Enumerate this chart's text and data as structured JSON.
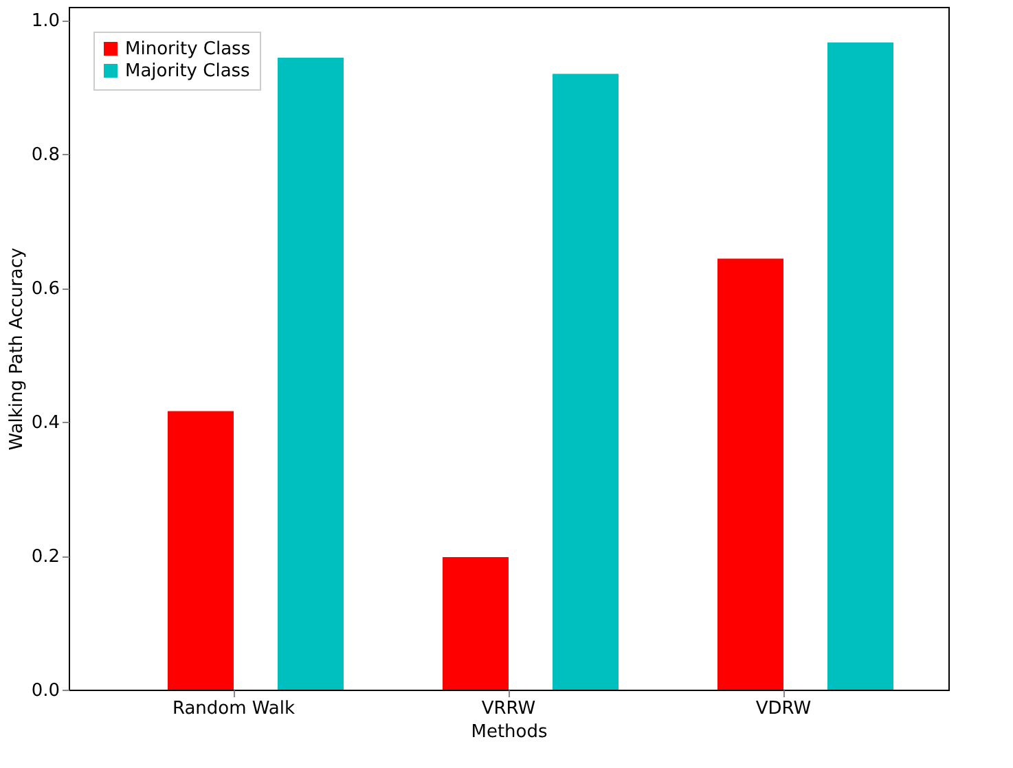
{
  "chart_data": {
    "type": "bar",
    "xlabel": "Methods",
    "ylabel": "Walking Path Accuracy",
    "categories": [
      "Random Walk",
      "VRRW",
      "VDRW"
    ],
    "series": [
      {
        "name": "Minority Class",
        "color": "#ff0000",
        "values": [
          0.416,
          0.198,
          0.644
        ]
      },
      {
        "name": "Majority Class",
        "color": "#00bfbf",
        "values": [
          0.944,
          0.92,
          0.967
        ]
      }
    ],
    "ylim": [
      0,
      1.02
    ],
    "yticks": [
      {
        "value": 0,
        "label": "0.0"
      },
      0.2,
      0.4,
      0.6,
      0.8,
      {
        "value": 1,
        "label": "1.0"
      }
    ],
    "grid": false,
    "legend": "top left"
  }
}
